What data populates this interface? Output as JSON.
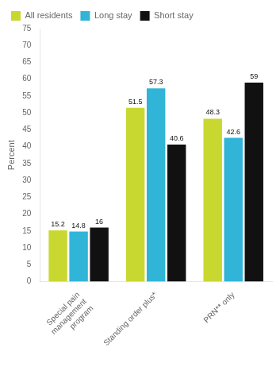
{
  "chart_data": {
    "type": "bar",
    "categories": [
      "Special pain\nmanagement\nprogram",
      "Standing order plus*",
      "PRN** only"
    ],
    "series": [
      {
        "name": "All residents",
        "color": "#c8d830",
        "values": [
          15.2,
          51.5,
          48.3
        ]
      },
      {
        "name": "Long stay",
        "color": "#30b4d8",
        "values": [
          14.8,
          57.3,
          42.6
        ]
      },
      {
        "name": "Short stay",
        "color": "#111111",
        "values": [
          16,
          40.6,
          59
        ]
      }
    ],
    "ylabel": "Percent",
    "ylim": [
      0,
      75
    ],
    "yticks": [
      0,
      5,
      10,
      15,
      20,
      25,
      30,
      35,
      40,
      45,
      50,
      55,
      60,
      65,
      70,
      75
    ],
    "grid": false,
    "legend": "upper left",
    "data_labels": true
  }
}
